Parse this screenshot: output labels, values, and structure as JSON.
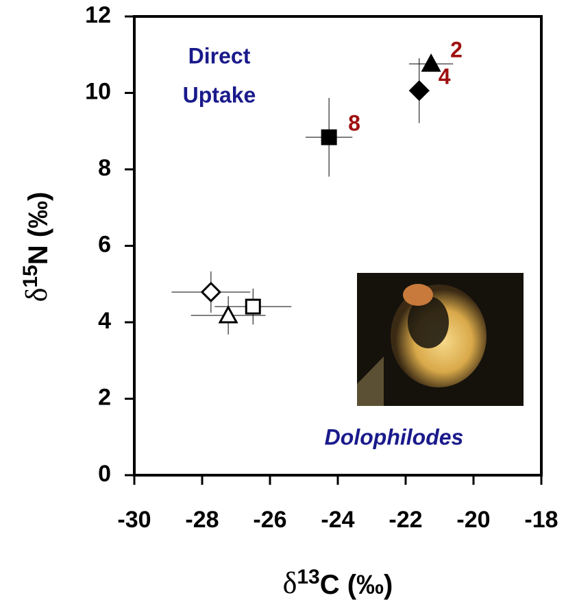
{
  "chart_data": {
    "type": "scatter",
    "x_label_parts": [
      "δ",
      "13",
      "C (‰)"
    ],
    "y_label_parts": [
      "δ",
      "15",
      "N (‰)"
    ],
    "annotations": [
      "Direct",
      "Uptake",
      "Dolophilodes"
    ],
    "xlim": [
      -30,
      -18
    ],
    "xticks": [
      -30,
      -28,
      -26,
      -24,
      -22,
      -20,
      -18
    ],
    "ylim": [
      0,
      12
    ],
    "yticks": [
      0,
      2,
      4,
      6,
      8,
      10,
      12
    ],
    "label_color": "#a01010",
    "annotation_color": "#1a1a8c",
    "series": [
      {
        "marker": "triangle",
        "filled": true,
        "x": [
          -21.25
        ],
        "values": [
          10.76
        ],
        "xerr": [
          0.65
        ],
        "yerr": [
          0.2
        ],
        "label": "2"
      },
      {
        "marker": "diamond",
        "filled": true,
        "x": [
          -21.6
        ],
        "values": [
          10.06
        ],
        "xerr": [
          0.3
        ],
        "yerr": [
          0.85
        ],
        "label": "4"
      },
      {
        "marker": "square",
        "filled": true,
        "x": [
          -24.26
        ],
        "values": [
          8.84
        ],
        "xerr": [
          0.69
        ],
        "yerr": [
          1.03
        ],
        "label": "8"
      },
      {
        "marker": "diamond",
        "filled": false,
        "x": [
          -27.74
        ],
        "values": [
          4.79
        ],
        "xerr": [
          1.16
        ],
        "yerr": [
          0.54
        ]
      },
      {
        "marker": "triangle",
        "filled": false,
        "x": [
          -27.23
        ],
        "values": [
          4.18
        ],
        "xerr": [
          1.1
        ],
        "yerr": [
          0.5
        ]
      },
      {
        "marker": "square",
        "filled": false,
        "x": [
          -26.5
        ],
        "values": [
          4.41
        ],
        "xerr": [
          1.13
        ],
        "yerr": [
          0.47
        ]
      }
    ]
  }
}
